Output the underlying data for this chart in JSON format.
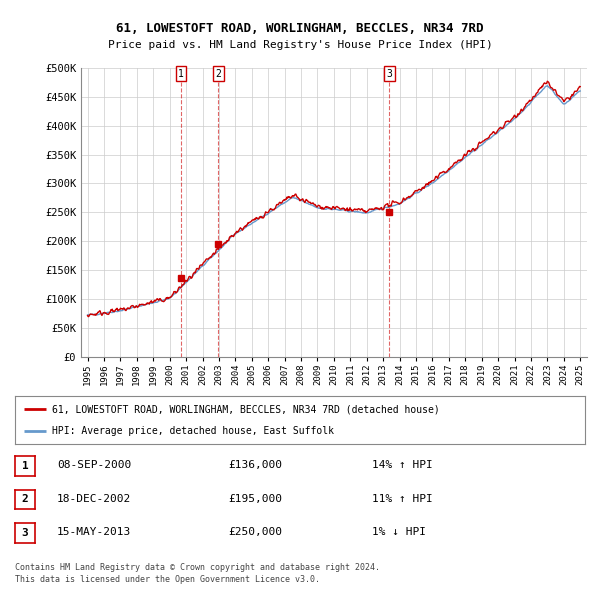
{
  "title1": "61, LOWESTOFT ROAD, WORLINGHAM, BECCLES, NR34 7RD",
  "title2": "Price paid vs. HM Land Registry's House Price Index (HPI)",
  "legend_red": "61, LOWESTOFT ROAD, WORLINGHAM, BECCLES, NR34 7RD (detached house)",
  "legend_blue": "HPI: Average price, detached house, East Suffolk",
  "transactions": [
    {
      "num": 1,
      "date": "08-SEP-2000",
      "price": "£136,000",
      "hpi": "14% ↑ HPI",
      "year": 2000.69,
      "price_val": 136000
    },
    {
      "num": 2,
      "date": "18-DEC-2002",
      "price": "£195,000",
      "hpi": "11% ↑ HPI",
      "year": 2002.96,
      "price_val": 195000
    },
    {
      "num": 3,
      "date": "15-MAY-2013",
      "price": "£250,000",
      "hpi": "1% ↓ HPI",
      "year": 2013.37,
      "price_val": 250000
    }
  ],
  "footer1": "Contains HM Land Registry data © Crown copyright and database right 2024.",
  "footer2": "This data is licensed under the Open Government Licence v3.0.",
  "ylim": [
    0,
    500000
  ],
  "yticks": [
    0,
    50000,
    100000,
    150000,
    200000,
    250000,
    300000,
    350000,
    400000,
    450000,
    500000
  ],
  "ytick_labels": [
    "£0",
    "£50K",
    "£100K",
    "£150K",
    "£200K",
    "£250K",
    "£300K",
    "£350K",
    "£400K",
    "£450K",
    "£500K"
  ],
  "bg_color": "#ffffff",
  "grid_color": "#cccccc",
  "red_color": "#cc0000",
  "blue_color": "#6699cc",
  "xmin": 1995,
  "xmax": 2025
}
